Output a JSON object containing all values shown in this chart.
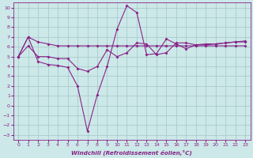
{
  "bg_color": "#cce8e8",
  "grid_color": "#aacccc",
  "line_color": "#882288",
  "xlabel": "Windchill (Refroidissement éolien,°C)",
  "xlim": [
    -0.5,
    23.5
  ],
  "ylim": [
    -3.5,
    10.5
  ],
  "xticks": [
    0,
    1,
    2,
    3,
    4,
    5,
    6,
    7,
    8,
    9,
    10,
    11,
    12,
    13,
    14,
    15,
    16,
    17,
    18,
    19,
    20,
    21,
    22,
    23
  ],
  "yticks": [
    -3,
    -2,
    -1,
    0,
    1,
    2,
    3,
    4,
    5,
    6,
    7,
    8,
    9,
    10
  ],
  "line1_x": [
    0,
    1,
    2,
    3,
    4,
    5,
    6,
    7,
    8,
    9,
    10,
    11,
    12,
    13,
    14,
    15,
    16,
    17,
    18,
    19,
    20,
    21,
    22,
    23
  ],
  "line1_y": [
    5.0,
    7.0,
    6.5,
    6.3,
    6.1,
    6.1,
    6.1,
    6.1,
    6.1,
    6.1,
    6.1,
    6.1,
    6.1,
    6.1,
    6.1,
    6.1,
    6.1,
    6.1,
    6.1,
    6.1,
    6.1,
    6.1,
    6.1,
    6.1
  ],
  "line2_x": [
    0,
    1,
    2,
    3,
    4,
    5,
    6,
    7,
    8,
    9,
    10,
    11,
    12,
    13,
    14,
    15,
    16,
    17,
    18,
    19,
    20,
    21,
    22,
    23
  ],
  "line2_y": [
    5.0,
    7.0,
    4.5,
    4.2,
    4.1,
    3.9,
    2.0,
    -2.6,
    1.1,
    4.0,
    7.8,
    10.2,
    9.5,
    5.2,
    5.3,
    6.8,
    6.3,
    5.8,
    6.2,
    6.2,
    6.3,
    6.4,
    6.5,
    6.6
  ],
  "line3_x": [
    0,
    1,
    2,
    3,
    4,
    5,
    6,
    7,
    8,
    9,
    10,
    11,
    12,
    13,
    14,
    15,
    16,
    17,
    18,
    19,
    20,
    21,
    22,
    23
  ],
  "line3_y": [
    5.0,
    6.1,
    5.0,
    5.0,
    4.8,
    4.8,
    3.8,
    3.5,
    4.0,
    5.7,
    5.0,
    5.4,
    6.4,
    6.3,
    5.2,
    5.4,
    6.4,
    6.4,
    6.2,
    6.3,
    6.3,
    6.4,
    6.5,
    6.5
  ]
}
